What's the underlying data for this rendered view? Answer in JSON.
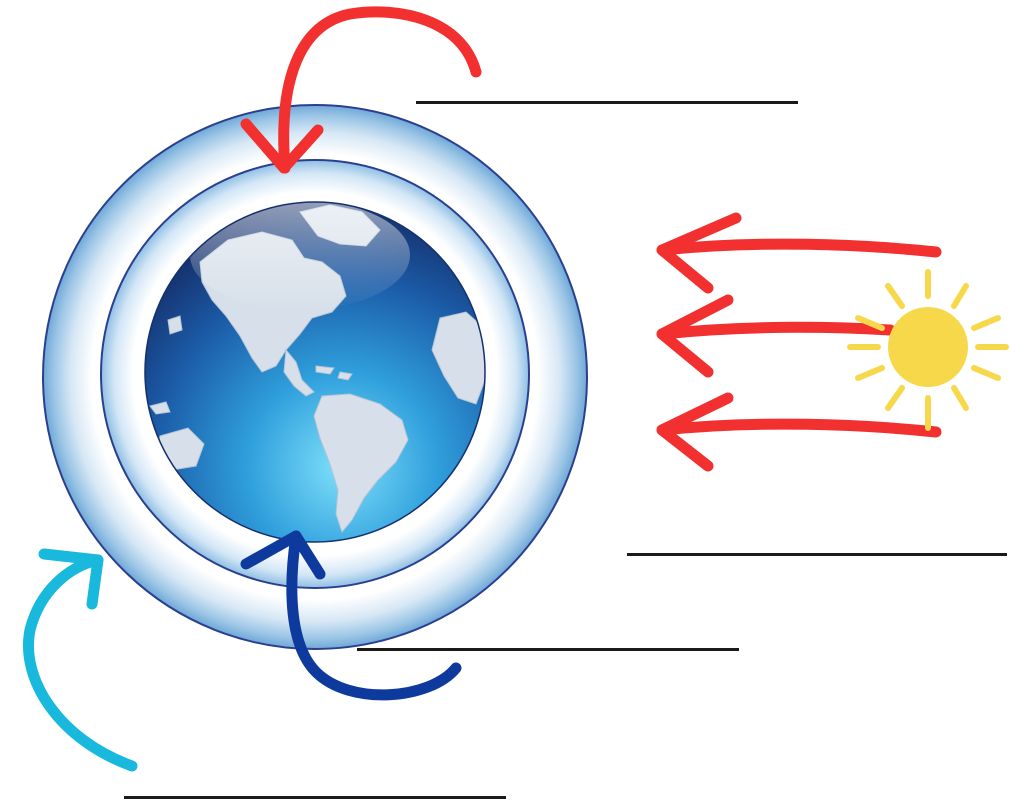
{
  "diagram": {
    "title": "",
    "colors": {
      "background": "#ffffff",
      "outer_ring_stroke": "#2b3f8f",
      "outer_ring_fill_light": "#ffffff",
      "outer_ring_fill_mid": "#c9dff0",
      "outer_ring_fill_dark": "#7fb3dc",
      "earth_ocean_dark": "#16306e",
      "earth_ocean_light": "#6fd0f2",
      "earth_land": "#d7e0ea",
      "incoming_arrow": "#f2302f",
      "reflected_arrow": "#f2302f",
      "surface_arrow": "#0d3a9c",
      "escape_arrow": "#18b9dc",
      "sun": "#f7d84a",
      "sun_rays": "#f7d84a",
      "blank_line": "#1a1a1a"
    },
    "icons": {
      "earth": "earth-globe-icon",
      "sun": "sun-icon"
    },
    "blanks": [
      {
        "id": "blank-top",
        "answer": ""
      },
      {
        "id": "blank-right",
        "answer": ""
      },
      {
        "id": "blank-middle",
        "answer": ""
      },
      {
        "id": "blank-bottom",
        "answer": ""
      }
    ]
  }
}
